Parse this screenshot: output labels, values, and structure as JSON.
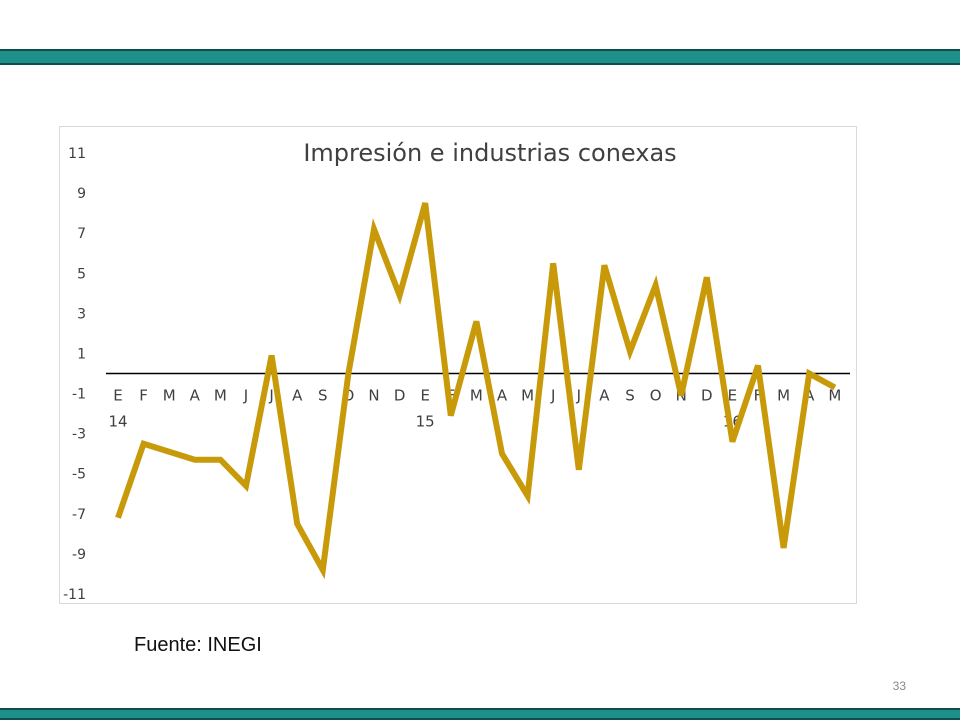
{
  "page": {
    "source_label": "Fuente: INEGI",
    "page_number": "33"
  },
  "colors": {
    "band_dark": "#0e4e4d",
    "band_teal": "#1f8f8a",
    "series_line": "#c89a0a",
    "zero_line": "#000000"
  },
  "chart_data": {
    "type": "line",
    "title": "Impresión e industrias conexas",
    "xlabel": "",
    "ylabel": "",
    "ylim": [
      -11,
      11
    ],
    "yticks": [
      11,
      9,
      7,
      5,
      3,
      1,
      -1,
      -3,
      -5,
      -7,
      -9,
      -11
    ],
    "grid": false,
    "legend": "none",
    "categories": [
      "E",
      "F",
      "M",
      "A",
      "M",
      "J",
      "J",
      "A",
      "S",
      "O",
      "N",
      "D",
      "E",
      "F",
      "M",
      "A",
      "M",
      "J",
      "J",
      "A",
      "S",
      "O",
      "N",
      "D",
      "E",
      "F",
      "M",
      "A",
      "M"
    ],
    "year_labels": [
      {
        "index": 0,
        "label": "14"
      },
      {
        "index": 12,
        "label": "15"
      },
      {
        "index": 24,
        "label": "16"
      }
    ],
    "series": [
      {
        "values": [
          -7.2,
          -3.5,
          -3.9,
          -4.3,
          -4.3,
          -5.6,
          0.9,
          -7.5,
          -9.8,
          0.0,
          7.2,
          3.9,
          8.5,
          -2.1,
          2.6,
          -4.0,
          -6.1,
          5.5,
          -4.8,
          5.4,
          1.1,
          4.4,
          -1.1,
          4.8,
          -3.4,
          0.4,
          -8.7,
          0.0,
          -0.7
        ]
      }
    ]
  }
}
